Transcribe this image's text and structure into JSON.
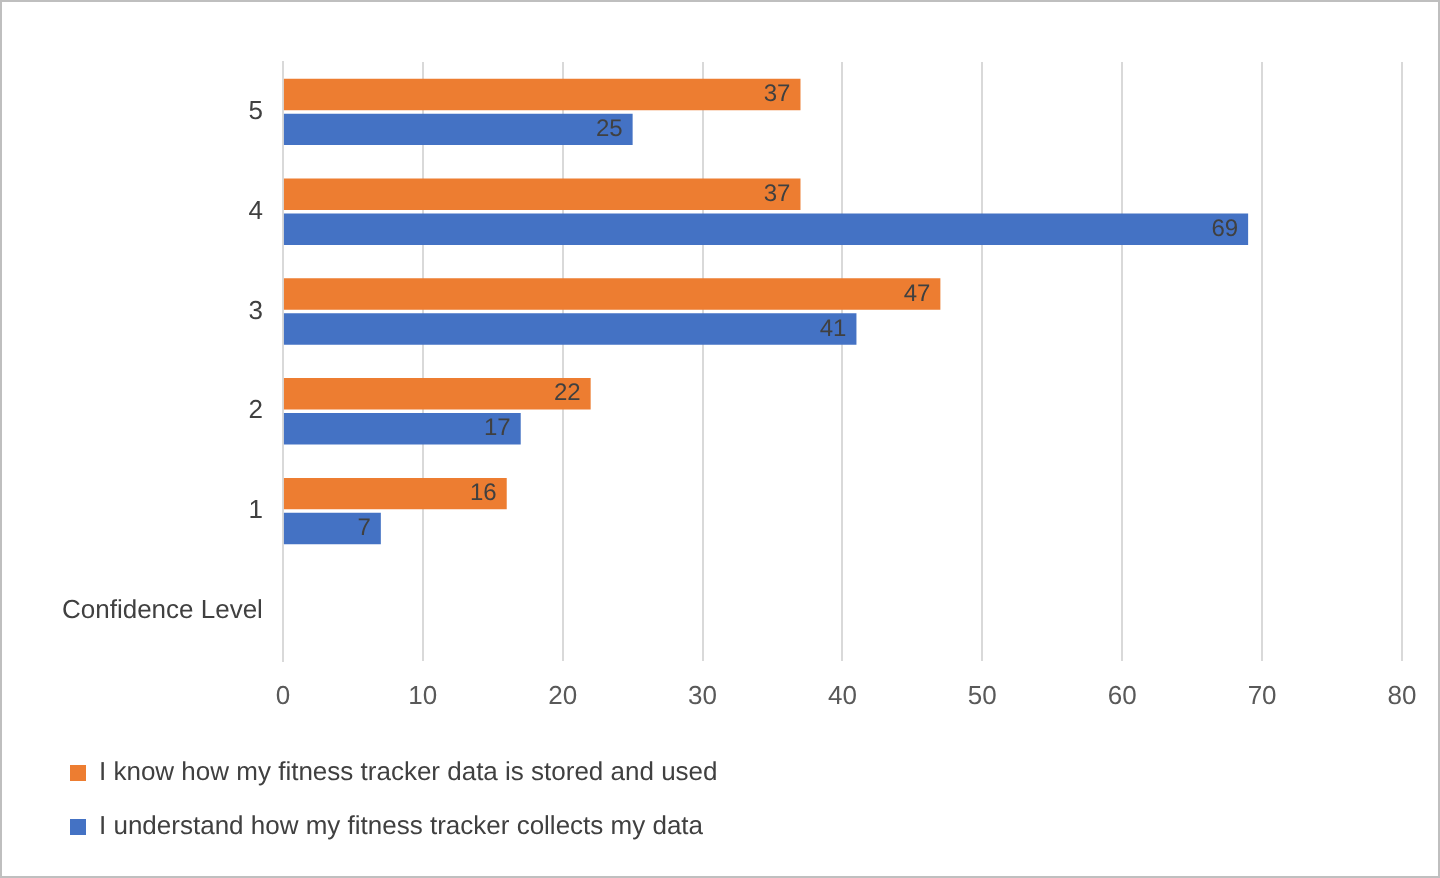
{
  "chart_data": {
    "type": "bar",
    "orientation": "horizontal",
    "categories": [
      "5",
      "4",
      "3",
      "2",
      "1",
      "Confidence Level"
    ],
    "series": [
      {
        "name": "I know how my fitness tracker data is stored and used",
        "color": "#ed7d31",
        "values": [
          37,
          37,
          47,
          22,
          16,
          null
        ]
      },
      {
        "name": "I understand how my fitness tracker collects my data",
        "color": "#4472c4",
        "values": [
          25,
          69,
          41,
          17,
          7,
          null
        ]
      }
    ],
    "xlim": [
      0,
      80
    ],
    "xticks": [
      0,
      10,
      20,
      30,
      40,
      50,
      60,
      70,
      80
    ],
    "grid": "x",
    "legend": "bottom",
    "data_labels": true
  }
}
